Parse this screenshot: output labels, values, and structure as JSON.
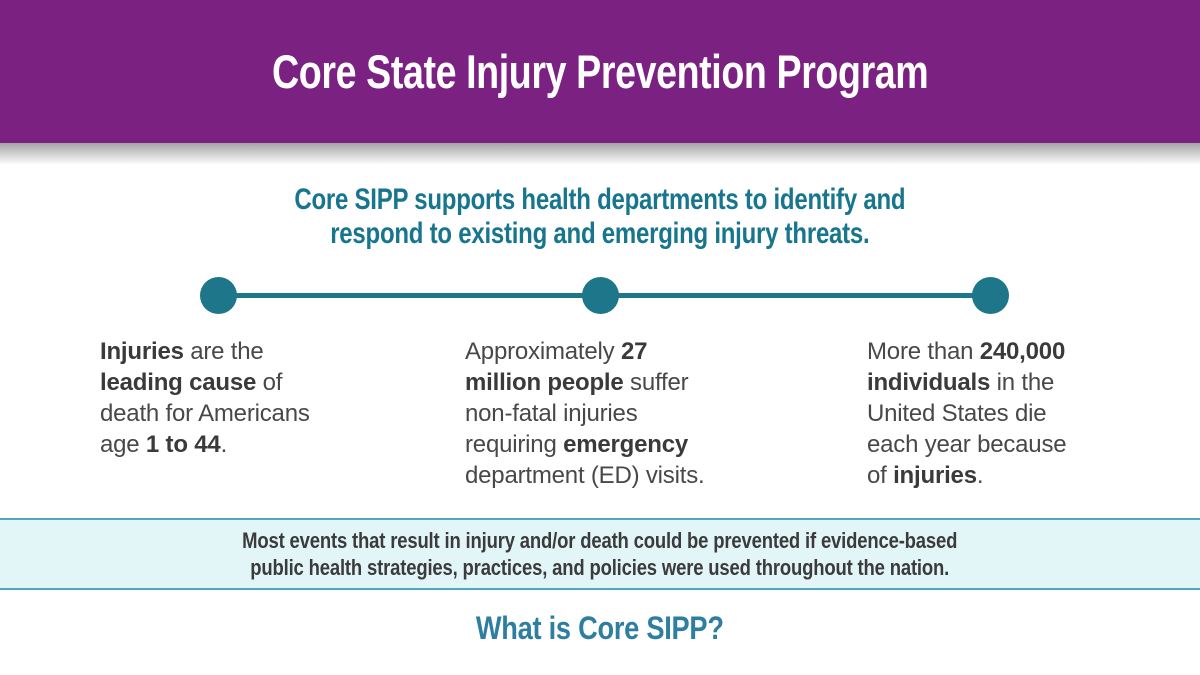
{
  "colors": {
    "purple": "#7A2182",
    "teal-text": "#17768E",
    "timeline-teal": "#1D7689",
    "body-text": "#48484A",
    "banner-bg": "#E3F6F7",
    "banner-border": "#4FA8BC",
    "banner-text": "#3B3B3D",
    "whatis-teal": "#2E7EA0"
  },
  "header": {
    "title": "Core State Injury Prevention Program"
  },
  "intro": {
    "line1": "Core SIPP supports health departments to identify and",
    "line2": "respond to existing and emerging injury threats."
  },
  "stats": [
    {
      "lines": [
        [
          {
            "t": "Injuries",
            "b": true
          },
          {
            "t": " are the",
            "b": false
          }
        ],
        [
          {
            "t": "leading cause",
            "b": true
          },
          {
            "t": " of",
            "b": false
          }
        ],
        [
          {
            "t": "death for Americans",
            "b": false
          }
        ],
        [
          {
            "t": "age ",
            "b": false
          },
          {
            "t": "1 to 44",
            "b": true
          },
          {
            "t": ".",
            "b": false
          }
        ]
      ]
    },
    {
      "lines": [
        [
          {
            "t": "Approximately ",
            "b": false
          },
          {
            "t": "27",
            "b": true
          }
        ],
        [
          {
            "t": "million people",
            "b": true
          },
          {
            "t": " suffer",
            "b": false
          }
        ],
        [
          {
            "t": "non-fatal injuries",
            "b": false
          }
        ],
        [
          {
            "t": "requiring ",
            "b": false
          },
          {
            "t": "emergency",
            "b": true
          }
        ],
        [
          {
            "t": "department (ED) visits.",
            "b": false
          }
        ]
      ]
    },
    {
      "lines": [
        [
          {
            "t": "More than ",
            "b": false
          },
          {
            "t": "240,000",
            "b": true
          }
        ],
        [
          {
            "t": "individuals",
            "b": true
          },
          {
            "t": " in the",
            "b": false
          }
        ],
        [
          {
            "t": "United States die",
            "b": false
          }
        ],
        [
          {
            "t": "each year because",
            "b": false
          }
        ],
        [
          {
            "t": "of ",
            "b": false
          },
          {
            "t": "injuries",
            "b": true
          },
          {
            "t": ".",
            "b": false
          }
        ]
      ]
    }
  ],
  "banner": {
    "line1": "Most events that result in injury and/or death could be prevented if evidence-based",
    "line2": "public health strategies, practices, and policies were used throughout the nation."
  },
  "section_heading": {
    "text": "What is Core SIPP?"
  }
}
